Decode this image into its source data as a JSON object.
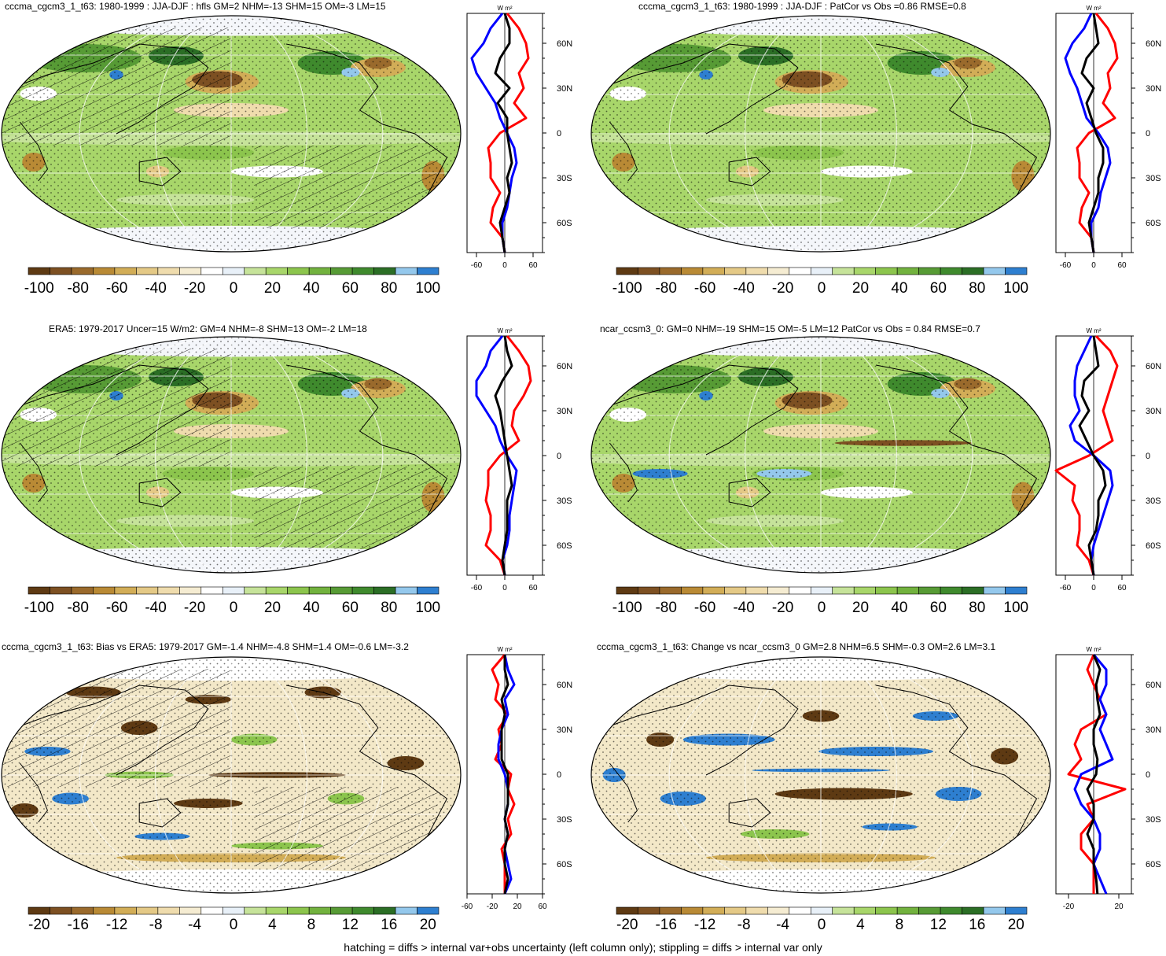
{
  "footnote": "hatching = diffs > internal var+obs uncertainty (left column only); stippling = diffs > internal var only",
  "profile_unit": "W m²",
  "lat_ticks": [
    "60N",
    "30N",
    "0",
    "30S",
    "60S"
  ],
  "colorbar_colors": [
    "#5e3a13",
    "#7d5022",
    "#9a6a2c",
    "#b98a35",
    "#d2ad57",
    "#e4c986",
    "#efdcad",
    "#f5ecd2",
    "#ffffff",
    "#e8f0f8",
    "#c6e39a",
    "#a8d66a",
    "#8cc54d",
    "#72b23e",
    "#579b35",
    "#3f8a2d",
    "#2b6e25",
    "#94c8ec",
    "#2e7fd0"
  ],
  "colors": {
    "model": "#ff0000",
    "obs": "#0000ff",
    "diff": "#000000",
    "coast": "#000000"
  },
  "panels": [
    {
      "id": "p1",
      "title": "cccma_cgcm3_1_t63: 1980-1999 : JJA-DJF : hfls GM=2 NHM=-13 SHM=15 OM=-3 LM=15",
      "colorbar_labels": [
        "-100",
        "-80",
        "-60",
        "-40",
        "-20",
        "0",
        "20",
        "40",
        "60",
        "80",
        "100"
      ],
      "profile_ticks": [
        "-60",
        "0",
        "60"
      ],
      "hatching": true
    },
    {
      "id": "p2",
      "title": "cccma_cgcm3_1_t63: 1980-1999 : JJA-DJF : PatCor vs Obs =0.86 RMSE=0.8",
      "colorbar_labels": [
        "-100",
        "-80",
        "-60",
        "-40",
        "-20",
        "0",
        "20",
        "40",
        "60",
        "80",
        "100"
      ],
      "profile_ticks": [
        "-60",
        "0",
        "60"
      ],
      "hatching": false
    },
    {
      "id": "p3",
      "title": "ERA5: 1979-2017 Uncer=15 W/m2: GM=4 NHM=-8 SHM=13 OM=-2 LM=18",
      "colorbar_labels": [
        "-100",
        "-80",
        "-60",
        "-40",
        "-20",
        "0",
        "20",
        "40",
        "60",
        "80",
        "100"
      ],
      "profile_ticks": [
        "-60",
        "0",
        "60"
      ],
      "hatching": true
    },
    {
      "id": "p4",
      "title": "ncar_ccsm3_0: GM=0 NHM=-19 SHM=15 OM=-5 LM=12 PatCor vs Obs = 0.84 RMSE=0.7",
      "colorbar_labels": [
        "-100",
        "-80",
        "-60",
        "-40",
        "-20",
        "0",
        "20",
        "40",
        "60",
        "80",
        "100"
      ],
      "profile_ticks": [
        "-60",
        "0",
        "60"
      ],
      "hatching": false
    },
    {
      "id": "p5",
      "title": "cccma_cgcm3_1_t63: Bias vs ERA5: 1979-2017 GM=-1.4 NHM=-4.8 SHM=1.4 OM=-0.6 LM=-3.2",
      "colorbar_labels": [
        "-20",
        "-16",
        "-12",
        "-8",
        "-4",
        "0",
        "4",
        "8",
        "12",
        "16",
        "20"
      ],
      "profile_ticks": [
        "-60",
        "-20",
        "20",
        "60"
      ],
      "hatching": true
    },
    {
      "id": "p6",
      "title": "cccma_cgcm3_1_t63: Change vs ncar_ccsm3_0 GM=2.8 NHM=6.5 SHM=-0.3 OM=2.6 LM=3.1",
      "colorbar_labels": [
        "-20",
        "-16",
        "-12",
        "-8",
        "-4",
        "0",
        "4",
        "8",
        "12",
        "16",
        "20"
      ],
      "profile_ticks": [
        "-20",
        "20"
      ],
      "hatching": false
    }
  ],
  "chart_data": [
    {
      "type": "heatmap",
      "title": "cccma_cgcm3_1_t63: 1980-1999 : JJA-DJF : hfls GM=2 NHM=-13 SHM=15 OM=-3 LM=15",
      "colorbar_range": [
        -100,
        100
      ],
      "colorbar_step": 10,
      "profile": {
        "type": "line",
        "ylim": [
          -80,
          80
        ],
        "xlim": [
          -80,
          80
        ],
        "lat": [
          80,
          70,
          60,
          50,
          40,
          30,
          20,
          10,
          0,
          -10,
          -20,
          -30,
          -40,
          -50,
          -60,
          -70,
          -80
        ],
        "series": [
          {
            "color": "red",
            "values": [
              5,
              30,
              45,
              50,
              30,
              40,
              20,
              45,
              -10,
              -35,
              -30,
              -30,
              -10,
              -25,
              -30,
              -5,
              0
            ]
          },
          {
            "color": "blue",
            "values": [
              -5,
              -30,
              -45,
              -70,
              -60,
              -40,
              -20,
              -10,
              5,
              20,
              25,
              15,
              10,
              5,
              -5,
              -5,
              0
            ]
          },
          {
            "color": "black",
            "values": [
              0,
              10,
              10,
              -10,
              -20,
              10,
              -15,
              5,
              5,
              10,
              15,
              5,
              10,
              0,
              -10,
              -5,
              0
            ]
          }
        ]
      }
    },
    {
      "type": "heatmap",
      "title": "cccma_cgcm3_1_t63: 1980-1999 : JJA-DJF : PatCor vs Obs =0.86 RMSE=0.8",
      "colorbar_range": [
        -100,
        100
      ],
      "colorbar_step": 10,
      "profile": {
        "type": "line",
        "ylim": [
          -80,
          80
        ],
        "xlim": [
          -80,
          80
        ],
        "lat": [
          80,
          70,
          60,
          50,
          40,
          30,
          20,
          10,
          0,
          -10,
          -20,
          -30,
          -40,
          -50,
          -60,
          -70,
          -80
        ],
        "series": [
          {
            "color": "red",
            "values": [
              5,
              30,
              45,
              50,
              30,
              35,
              20,
              45,
              -10,
              -35,
              -30,
              -30,
              -10,
              -25,
              -30,
              -5,
              0
            ]
          },
          {
            "color": "blue",
            "values": [
              -5,
              -20,
              -45,
              -60,
              -50,
              -35,
              -25,
              -15,
              10,
              30,
              35,
              25,
              15,
              10,
              -5,
              -5,
              0
            ]
          },
          {
            "color": "black",
            "values": [
              0,
              5,
              10,
              -15,
              -25,
              0,
              -15,
              -5,
              5,
              20,
              20,
              10,
              10,
              0,
              -10,
              -5,
              0
            ]
          }
        ]
      }
    },
    {
      "type": "heatmap",
      "title": "ERA5: 1979-2017 Uncer=15 W/m2: GM=4 NHM=-8 SHM=13 OM=-2 LM=18",
      "colorbar_range": [
        -100,
        100
      ],
      "colorbar_step": 10,
      "profile": {
        "type": "line",
        "ylim": [
          -80,
          80
        ],
        "xlim": [
          -80,
          80
        ],
        "lat": [
          80,
          70,
          60,
          50,
          40,
          30,
          20,
          10,
          0,
          -10,
          -20,
          -30,
          -40,
          -50,
          -60,
          -70,
          -80
        ],
        "series": [
          {
            "color": "red",
            "values": [
              5,
              30,
              50,
              55,
              40,
              20,
              15,
              30,
              -10,
              -35,
              -35,
              -40,
              -30,
              -30,
              -40,
              -10,
              0
            ]
          },
          {
            "color": "blue",
            "values": [
              -5,
              -30,
              -40,
              -60,
              -60,
              -40,
              -20,
              -10,
              5,
              25,
              20,
              15,
              10,
              10,
              5,
              -5,
              0
            ]
          },
          {
            "color": "black",
            "values": [
              0,
              5,
              15,
              -5,
              -20,
              -10,
              -5,
              0,
              5,
              10,
              15,
              5,
              5,
              5,
              0,
              -5,
              0
            ]
          }
        ]
      }
    },
    {
      "type": "heatmap",
      "title": "ncar_ccsm3_0: GM=0 NHM=-19 SHM=15 OM=-5 LM=12 PatCor vs Obs = 0.84 RMSE=0.7",
      "colorbar_range": [
        -100,
        100
      ],
      "colorbar_step": 10,
      "profile": {
        "type": "line",
        "ylim": [
          -80,
          80
        ],
        "xlim": [
          -80,
          80
        ],
        "lat": [
          80,
          70,
          60,
          50,
          40,
          30,
          20,
          10,
          0,
          -10,
          -20,
          -30,
          -40,
          -50,
          -60,
          -70,
          -80
        ],
        "series": [
          {
            "color": "red",
            "values": [
              5,
              35,
              50,
              40,
              30,
              20,
              30,
              40,
              -10,
              -80,
              -40,
              -45,
              -30,
              -30,
              -35,
              -10,
              0
            ]
          },
          {
            "color": "blue",
            "values": [
              -5,
              -20,
              -35,
              -40,
              -40,
              -30,
              -50,
              -40,
              0,
              35,
              40,
              30,
              20,
              10,
              0,
              -5,
              0
            ]
          },
          {
            "color": "black",
            "values": [
              0,
              5,
              10,
              -20,
              -25,
              -10,
              -30,
              -15,
              0,
              20,
              25,
              10,
              10,
              5,
              -10,
              -5,
              0
            ]
          }
        ]
      }
    },
    {
      "type": "heatmap",
      "title": "cccma_cgcm3_1_t63: Bias vs ERA5: 1979-2017 GM=-1.4 NHM=-4.8 SHM=1.4 OM=-0.6 LM=-3.2",
      "colorbar_range": [
        -20,
        20
      ],
      "colorbar_step": 2,
      "profile": {
        "type": "line",
        "ylim": [
          -80,
          80
        ],
        "xlim": [
          -60,
          60
        ],
        "lat": [
          80,
          70,
          60,
          50,
          40,
          30,
          20,
          10,
          0,
          -10,
          -20,
          -30,
          -40,
          -50,
          -60,
          -70,
          -80
        ],
        "series": [
          {
            "color": "red",
            "values": [
              0,
              -20,
              -10,
              -15,
              5,
              -10,
              -5,
              -15,
              10,
              5,
              15,
              5,
              10,
              -5,
              0,
              0,
              0
            ]
          },
          {
            "color": "blue",
            "values": [
              0,
              5,
              15,
              0,
              5,
              -5,
              -10,
              -10,
              0,
              5,
              5,
              0,
              5,
              0,
              5,
              10,
              0
            ]
          },
          {
            "color": "black",
            "values": [
              0,
              0,
              5,
              -5,
              0,
              -5,
              -5,
              -5,
              5,
              5,
              5,
              0,
              5,
              0,
              0,
              5,
              0
            ]
          }
        ]
      }
    },
    {
      "type": "heatmap",
      "title": "cccma_cgcm3_1_t63: Change vs ncar_ccsm3_0 GM=2.8 NHM=6.5 SHM=-0.3 OM=2.6 LM=3.1",
      "colorbar_range": [
        -20,
        20
      ],
      "colorbar_step": 2,
      "profile": {
        "type": "line",
        "ylim": [
          -80,
          80
        ],
        "xlim": [
          -30,
          30
        ],
        "lat": [
          80,
          70,
          60,
          50,
          40,
          30,
          20,
          10,
          0,
          -10,
          -20,
          -30,
          -40,
          -50,
          -60,
          -70,
          -80
        ],
        "series": [
          {
            "color": "red",
            "values": [
              0,
              -5,
              0,
              5,
              10,
              -10,
              -15,
              -10,
              -20,
              25,
              -5,
              0,
              -10,
              -10,
              0,
              0,
              0
            ]
          },
          {
            "color": "blue",
            "values": [
              0,
              10,
              10,
              5,
              10,
              5,
              10,
              15,
              -10,
              -15,
              -10,
              0,
              5,
              5,
              0,
              5,
              10
            ]
          },
          {
            "color": "black",
            "values": [
              0,
              5,
              2,
              3,
              5,
              0,
              0,
              3,
              2,
              -5,
              0,
              0,
              -5,
              0,
              0,
              2,
              3
            ]
          }
        ]
      }
    }
  ]
}
